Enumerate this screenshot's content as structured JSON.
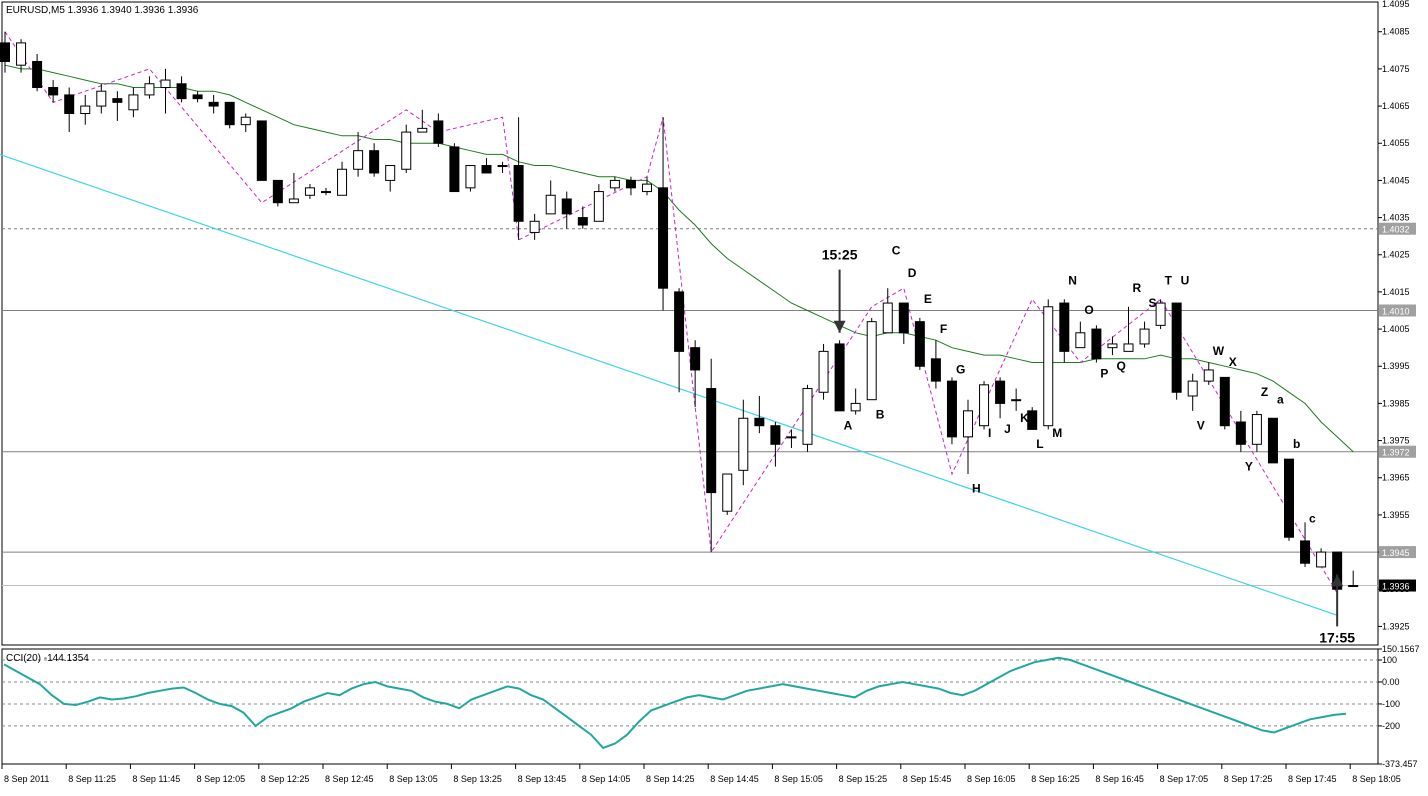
{
  "chart_data": [
    {
      "type": "candlestick",
      "title": "EURUSD,M5  1.3936 1.3940 1.3936 1.3936",
      "symbol": "EURUSD",
      "timeframe": "M5",
      "ylim": [
        1.392,
        1.4093
      ],
      "y_ticks": [
        "1.4085",
        "1.4075",
        "1.4065",
        "1.4055",
        "1.4045",
        "1.4035",
        "1.4025",
        "1.4015",
        "1.4005",
        "1.3995",
        "1.3985",
        "1.3975",
        "1.3965",
        "1.3955",
        "1.3945",
        "1.3935",
        "1.3925"
      ],
      "top_tick_partial": "1.4095",
      "x_ticks": [
        "8 Sep 2011",
        "8 Sep 11:25",
        "8 Sep 11:45",
        "8 Sep 12:05",
        "8 Sep 12:25",
        "8 Sep 12:45",
        "8 Sep 13:05",
        "8 Sep 13:25",
        "8 Sep 13:45",
        "8 Sep 14:05",
        "8 Sep 14:25",
        "8 Sep 14:45",
        "8 Sep 15:05",
        "8 Sep 15:25",
        "8 Sep 15:45",
        "8 Sep 16:05",
        "8 Sep 16:25",
        "8 Sep 16:45",
        "8 Sep 17:05",
        "8 Sep 17:25",
        "8 Sep 17:45",
        "8 Sep 18:05"
      ],
      "candles": [
        {
          "o": 1.4082,
          "h": 1.4085,
          "l": 1.4074,
          "c": 1.4077
        },
        {
          "o": 1.4076,
          "h": 1.4083,
          "l": 1.4074,
          "c": 1.4082
        },
        {
          "o": 1.4077,
          "h": 1.4079,
          "l": 1.4069,
          "c": 1.407
        },
        {
          "o": 1.407,
          "h": 1.4072,
          "l": 1.4066,
          "c": 1.4068
        },
        {
          "o": 1.4068,
          "h": 1.407,
          "l": 1.4058,
          "c": 1.4063
        },
        {
          "o": 1.4063,
          "h": 1.4068,
          "l": 1.406,
          "c": 1.4065
        },
        {
          "o": 1.4065,
          "h": 1.4071,
          "l": 1.4063,
          "c": 1.4069
        },
        {
          "o": 1.4067,
          "h": 1.4069,
          "l": 1.4061,
          "c": 1.4066
        },
        {
          "o": 1.4064,
          "h": 1.407,
          "l": 1.4062,
          "c": 1.4068
        },
        {
          "o": 1.4068,
          "h": 1.4073,
          "l": 1.4067,
          "c": 1.4071
        },
        {
          "o": 1.407,
          "h": 1.4075,
          "l": 1.4063,
          "c": 1.4072
        },
        {
          "o": 1.4071,
          "h": 1.4073,
          "l": 1.4066,
          "c": 1.4067
        },
        {
          "o": 1.4068,
          "h": 1.4069,
          "l": 1.4066,
          "c": 1.4067
        },
        {
          "o": 1.4066,
          "h": 1.4068,
          "l": 1.4063,
          "c": 1.4065
        },
        {
          "o": 1.4066,
          "h": 1.4066,
          "l": 1.4059,
          "c": 1.406
        },
        {
          "o": 1.406,
          "h": 1.4063,
          "l": 1.4058,
          "c": 1.4062
        },
        {
          "o": 1.4061,
          "h": 1.4061,
          "l": 1.4045,
          "c": 1.4045
        },
        {
          "o": 1.4045,
          "h": 1.4045,
          "l": 1.4038,
          "c": 1.4039
        },
        {
          "o": 1.4039,
          "h": 1.4047,
          "l": 1.4039,
          "c": 1.404
        },
        {
          "o": 1.4041,
          "h": 1.4044,
          "l": 1.404,
          "c": 1.4043
        },
        {
          "o": 1.4042,
          "h": 1.4043,
          "l": 1.4041,
          "c": 1.4042
        },
        {
          "o": 1.4041,
          "h": 1.405,
          "l": 1.4041,
          "c": 1.4048
        },
        {
          "o": 1.4048,
          "h": 1.4058,
          "l": 1.4046,
          "c": 1.4053
        },
        {
          "o": 1.4053,
          "h": 1.4055,
          "l": 1.4046,
          "c": 1.4047
        },
        {
          "o": 1.4045,
          "h": 1.4049,
          "l": 1.4042,
          "c": 1.4049
        },
        {
          "o": 1.4048,
          "h": 1.406,
          "l": 1.4047,
          "c": 1.4058
        },
        {
          "o": 1.4058,
          "h": 1.4064,
          "l": 1.4058,
          "c": 1.4059
        },
        {
          "o": 1.4061,
          "h": 1.4063,
          "l": 1.4054,
          "c": 1.4055
        },
        {
          "o": 1.4054,
          "h": 1.4055,
          "l": 1.4042,
          "c": 1.4042
        },
        {
          "o": 1.4043,
          "h": 1.4049,
          "l": 1.4042,
          "c": 1.4049
        },
        {
          "o": 1.4049,
          "h": 1.4051,
          "l": 1.4047,
          "c": 1.4047
        },
        {
          "o": 1.4049,
          "h": 1.405,
          "l": 1.4047,
          "c": 1.4049
        },
        {
          "o": 1.4049,
          "h": 1.4062,
          "l": 1.4029,
          "c": 1.4034
        },
        {
          "o": 1.4031,
          "h": 1.4036,
          "l": 1.4029,
          "c": 1.4034
        },
        {
          "o": 1.4036,
          "h": 1.4045,
          "l": 1.4036,
          "c": 1.4041
        },
        {
          "o": 1.404,
          "h": 1.4042,
          "l": 1.4032,
          "c": 1.4036
        },
        {
          "o": 1.4035,
          "h": 1.4038,
          "l": 1.4032,
          "c": 1.4033
        },
        {
          "o": 1.4034,
          "h": 1.4044,
          "l": 1.4034,
          "c": 1.4042
        },
        {
          "o": 1.4043,
          "h": 1.4046,
          "l": 1.4042,
          "c": 1.4045
        },
        {
          "o": 1.4045,
          "h": 1.4046,
          "l": 1.4041,
          "c": 1.4043
        },
        {
          "o": 1.4042,
          "h": 1.4046,
          "l": 1.4041,
          "c": 1.4044
        },
        {
          "o": 1.4043,
          "h": 1.4062,
          "l": 1.401,
          "c": 1.4016
        },
        {
          "o": 1.4015,
          "h": 1.4016,
          "l": 1.3988,
          "c": 1.3999
        },
        {
          "o": 1.4,
          "h": 1.4002,
          "l": 1.3984,
          "c": 1.3994
        },
        {
          "o": 1.3989,
          "h": 1.3997,
          "l": 1.3945,
          "c": 1.3961
        },
        {
          "o": 1.3956,
          "h": 1.3966,
          "l": 1.3955,
          "c": 1.3966
        },
        {
          "o": 1.3967,
          "h": 1.3986,
          "l": 1.3963,
          "c": 1.3981
        },
        {
          "o": 1.3981,
          "h": 1.3987,
          "l": 1.3977,
          "c": 1.3979
        },
        {
          "o": 1.3979,
          "h": 1.398,
          "l": 1.3968,
          "c": 1.3974
        },
        {
          "o": 1.3976,
          "h": 1.3978,
          "l": 1.3973,
          "c": 1.3976
        },
        {
          "o": 1.3974,
          "h": 1.399,
          "l": 1.3972,
          "c": 1.3989
        },
        {
          "o": 1.3988,
          "h": 1.4001,
          "l": 1.3986,
          "c": 1.3999
        },
        {
          "o": 1.4001,
          "h": 1.4002,
          "l": 1.3983,
          "c": 1.3983
        },
        {
          "o": 1.3983,
          "h": 1.3989,
          "l": 1.3982,
          "c": 1.3985
        },
        {
          "o": 1.3986,
          "h": 1.4008,
          "l": 1.3986,
          "c": 1.4007
        },
        {
          "o": 1.4004,
          "h": 1.4016,
          "l": 1.4004,
          "c": 1.4012
        },
        {
          "o": 1.4012,
          "h": 1.4012,
          "l": 1.4001,
          "c": 1.4004
        },
        {
          "o": 1.4007,
          "h": 1.4008,
          "l": 1.3994,
          "c": 1.3995
        },
        {
          "o": 1.3997,
          "h": 1.4002,
          "l": 1.3989,
          "c": 1.3991
        },
        {
          "o": 1.3991,
          "h": 1.3992,
          "l": 1.3974,
          "c": 1.3976
        },
        {
          "o": 1.3976,
          "h": 1.3986,
          "l": 1.3966,
          "c": 1.3983
        },
        {
          "o": 1.3979,
          "h": 1.3991,
          "l": 1.3978,
          "c": 1.399
        },
        {
          "o": 1.3991,
          "h": 1.3992,
          "l": 1.3981,
          "c": 1.3985
        },
        {
          "o": 1.3986,
          "h": 1.3989,
          "l": 1.3983,
          "c": 1.3986
        },
        {
          "o": 1.3983,
          "h": 1.3984,
          "l": 1.3978,
          "c": 1.3978
        },
        {
          "o": 1.3979,
          "h": 1.4013,
          "l": 1.3978,
          "c": 1.4011
        },
        {
          "o": 1.4012,
          "h": 1.4013,
          "l": 1.3996,
          "c": 1.3999
        },
        {
          "o": 1.4,
          "h": 1.4007,
          "l": 1.4,
          "c": 1.4004
        },
        {
          "o": 1.4005,
          "h": 1.4006,
          "l": 1.3996,
          "c": 1.3997
        },
        {
          "o": 1.4,
          "h": 1.4003,
          "l": 1.3998,
          "c": 1.4001
        },
        {
          "o": 1.3999,
          "h": 1.4011,
          "l": 1.3999,
          "c": 1.4001
        },
        {
          "o": 1.4001,
          "h": 1.4007,
          "l": 1.4,
          "c": 1.4005
        },
        {
          "o": 1.4006,
          "h": 1.4013,
          "l": 1.4005,
          "c": 1.4012
        },
        {
          "o": 1.4012,
          "h": 1.4012,
          "l": 1.3986,
          "c": 1.3988
        },
        {
          "o": 1.3987,
          "h": 1.3993,
          "l": 1.3983,
          "c": 1.3991
        },
        {
          "o": 1.3991,
          "h": 1.3996,
          "l": 1.399,
          "c": 1.3994
        },
        {
          "o": 1.3992,
          "h": 1.3992,
          "l": 1.3978,
          "c": 1.3979
        },
        {
          "o": 1.398,
          "h": 1.3983,
          "l": 1.3972,
          "c": 1.3974
        },
        {
          "o": 1.3974,
          "h": 1.3983,
          "l": 1.3972,
          "c": 1.3982
        },
        {
          "o": 1.3981,
          "h": 1.3981,
          "l": 1.3969,
          "c": 1.3969
        },
        {
          "o": 1.397,
          "h": 1.397,
          "l": 1.3948,
          "c": 1.3949
        },
        {
          "o": 1.3948,
          "h": 1.3953,
          "l": 1.3941,
          "c": 1.3942
        },
        {
          "o": 1.3941,
          "h": 1.3946,
          "l": 1.3941,
          "c": 1.3945
        },
        {
          "o": 1.3945,
          "h": 1.3945,
          "l": 1.3934,
          "c": 1.3935
        },
        {
          "o": 1.3936,
          "h": 1.394,
          "l": 1.3936,
          "c": 1.3936
        }
      ],
      "ma_series": [
        1.4076,
        1.4075,
        1.4075,
        1.4074,
        1.4073,
        1.4072,
        1.4071,
        1.4071,
        1.407,
        1.407,
        1.407,
        1.407,
        1.4069,
        1.4069,
        1.4068,
        1.4066,
        1.4064,
        1.4062,
        1.406,
        1.4059,
        1.4058,
        1.4057,
        1.4057,
        1.4056,
        1.4056,
        1.4055,
        1.4055,
        1.4055,
        1.4054,
        1.4053,
        1.4052,
        1.4052,
        1.405,
        1.4049,
        1.4049,
        1.4048,
        1.4047,
        1.4046,
        1.4046,
        1.4045,
        1.4045,
        1.4042,
        1.4037,
        1.4033,
        1.4028,
        1.4024,
        1.4021,
        1.4018,
        1.4015,
        1.4012,
        1.401,
        1.4008,
        1.4006,
        1.4004,
        1.4003,
        1.4004,
        1.4004,
        1.4003,
        1.4002,
        1.4,
        1.3999,
        1.3998,
        1.3998,
        1.3997,
        1.3996,
        1.3996,
        1.3996,
        1.3996,
        1.3997,
        1.3997,
        1.3997,
        1.3997,
        1.3998,
        1.3997,
        1.3997,
        1.3996,
        1.3995,
        1.3994,
        1.3993,
        1.3991,
        1.3988,
        1.3985,
        1.398,
        1.3976,
        1.3972
      ],
      "zigzag_points": [
        [
          0,
          1.4085
        ],
        [
          3,
          1.4066
        ],
        [
          9,
          1.4075
        ],
        [
          16,
          1.4039
        ],
        [
          25,
          1.4064
        ],
        [
          27,
          1.4058
        ],
        [
          31,
          1.4062
        ],
        [
          32,
          1.4029
        ],
        [
          40,
          1.4046
        ],
        [
          41,
          1.4062
        ],
        [
          44,
          1.3945
        ],
        [
          54,
          1.4011
        ],
        [
          56,
          1.4016
        ],
        [
          59,
          1.3966
        ],
        [
          64,
          1.4013
        ],
        [
          67,
          1.3996
        ],
        [
          72,
          1.4013
        ],
        [
          83,
          1.3934
        ]
      ],
      "horizontal_levels": [
        {
          "value": 1.4032,
          "label": "1.4032",
          "style": "dashed"
        },
        {
          "value": 1.401,
          "label": "1.4010",
          "style": "solid"
        },
        {
          "value": 1.3972,
          "label": "1.3972",
          "style": "solid"
        },
        {
          "value": 1.3945,
          "label": "1.3945",
          "style": "solid"
        },
        {
          "value": 1.3936,
          "label": "1.3936",
          "style": "current"
        }
      ],
      "trendline": {
        "from": [
          -1,
          1.4053
        ],
        "to": [
          83,
          1.3928
        ],
        "color": "#3fd3e8"
      },
      "letter_labels": [
        {
          "text": "A",
          "i": 52,
          "y": 1.3978
        },
        {
          "text": "B",
          "i": 54,
          "y": 1.3981
        },
        {
          "text": "C",
          "i": 55,
          "y": 1.4025
        },
        {
          "text": "D",
          "i": 56,
          "y": 1.4019
        },
        {
          "text": "E",
          "i": 57,
          "y": 1.4012
        },
        {
          "text": "F",
          "i": 58,
          "y": 1.4004
        },
        {
          "text": "G",
          "i": 59,
          "y": 1.3993
        },
        {
          "text": "H",
          "i": 60,
          "y": 1.3961
        },
        {
          "text": "I",
          "i": 61,
          "y": 1.3976
        },
        {
          "text": "J",
          "i": 62,
          "y": 1.3977
        },
        {
          "text": "K",
          "i": 63,
          "y": 1.398
        },
        {
          "text": "L",
          "i": 64,
          "y": 1.3973
        },
        {
          "text": "M",
          "i": 65,
          "y": 1.3976
        },
        {
          "text": "N",
          "i": 66,
          "y": 1.4017
        },
        {
          "text": "O",
          "i": 67,
          "y": 1.4009
        },
        {
          "text": "P",
          "i": 68,
          "y": 1.3992
        },
        {
          "text": "Q",
          "i": 69,
          "y": 1.3994
        },
        {
          "text": "R",
          "i": 70,
          "y": 1.4015
        },
        {
          "text": "S",
          "i": 71,
          "y": 1.4011
        },
        {
          "text": "T",
          "i": 72,
          "y": 1.4017
        },
        {
          "text": "U",
          "i": 73,
          "y": 1.4017
        },
        {
          "text": "V",
          "i": 74,
          "y": 1.3978
        },
        {
          "text": "W",
          "i": 75,
          "y": 1.3998
        },
        {
          "text": "X",
          "i": 76,
          "y": 1.3995
        },
        {
          "text": "Y",
          "i": 77,
          "y": 1.3967
        },
        {
          "text": "Z",
          "i": 78,
          "y": 1.3987
        },
        {
          "text": "a",
          "i": 79,
          "y": 1.3985
        },
        {
          "text": "b",
          "i": 80,
          "y": 1.3973
        },
        {
          "text": "c",
          "i": 81,
          "y": 1.3953
        }
      ],
      "annotations": [
        {
          "text": "15:25",
          "i": 52,
          "direction": "down",
          "y_from": 1.4021,
          "y_to": 1.4004
        },
        {
          "text": "17:55",
          "i": 83,
          "direction": "up",
          "y_from": 1.3925,
          "y_to": 1.3939
        }
      ],
      "colors": {
        "bull": "#ffffff",
        "bear": "#000000",
        "ma": "#1e7a1e",
        "zigzag": "#cc22cc",
        "trendline": "#3fd3e8",
        "cci": "#20a8a0",
        "grid": "#888888"
      }
    },
    {
      "type": "line",
      "title": "CCI(20) -144.1354",
      "ylim": [
        -373.457,
        150.1567
      ],
      "y_ticks": [
        "150.1567",
        "100",
        "0.00",
        "-100",
        "-200",
        "-373.457"
      ],
      "levels": [
        100,
        0,
        -100,
        -200
      ],
      "values": [
        80,
        50,
        20,
        -10,
        -60,
        -100,
        -105,
        -90,
        -70,
        -80,
        -75,
        -65,
        -50,
        -40,
        -30,
        -25,
        -50,
        -80,
        -100,
        -110,
        -140,
        -200,
        -160,
        -140,
        -120,
        -90,
        -70,
        -50,
        -60,
        -30,
        -10,
        0,
        -20,
        -30,
        -40,
        -70,
        -90,
        -100,
        -120,
        -80,
        -60,
        -40,
        -20,
        -30,
        -60,
        -80,
        -120,
        -160,
        -200,
        -240,
        -300,
        -280,
        -240,
        -180,
        -130,
        -110,
        -90,
        -70,
        -60,
        -70,
        -80,
        -60,
        -40,
        -30,
        -20,
        -10,
        -20,
        -30,
        -40,
        -50,
        -60,
        -70,
        -40,
        -20,
        -10,
        0,
        -10,
        -20,
        -30,
        -50,
        -60,
        -40,
        -10,
        20,
        50,
        70,
        90,
        100,
        110,
        100,
        80,
        60,
        40,
        20,
        0,
        -20,
        -40,
        -60,
        -80,
        -100,
        -120,
        -140,
        -160,
        -180,
        -200,
        -220,
        -230,
        -210,
        -190,
        -170,
        -160,
        -150,
        -145
      ],
      "current_value": -144.1354
    }
  ]
}
